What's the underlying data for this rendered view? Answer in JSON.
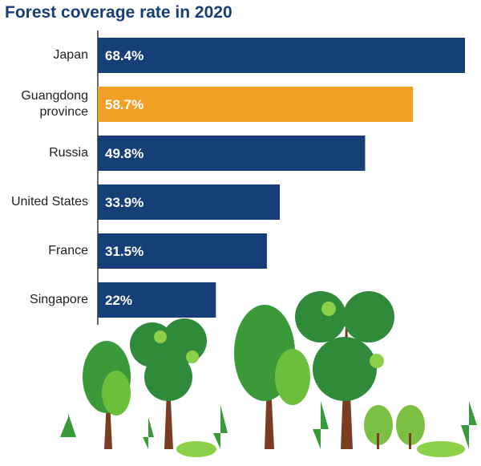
{
  "chart_data": {
    "type": "bar",
    "orientation": "horizontal",
    "title": "Forest coverage rate in 2020",
    "categories": [
      "Japan",
      "Guangdong province",
      "Russia",
      "United States",
      "France",
      "Singapore"
    ],
    "values": [
      68.4,
      58.7,
      49.8,
      33.9,
      31.5,
      22
    ],
    "value_labels": [
      "68.4%",
      "58.7%",
      "49.8%",
      "33.9%",
      "31.5%",
      "22%"
    ],
    "colors": [
      "#163f78",
      "#f19f25",
      "#163f78",
      "#163f78",
      "#163f78",
      "#163f78"
    ]
  }
}
